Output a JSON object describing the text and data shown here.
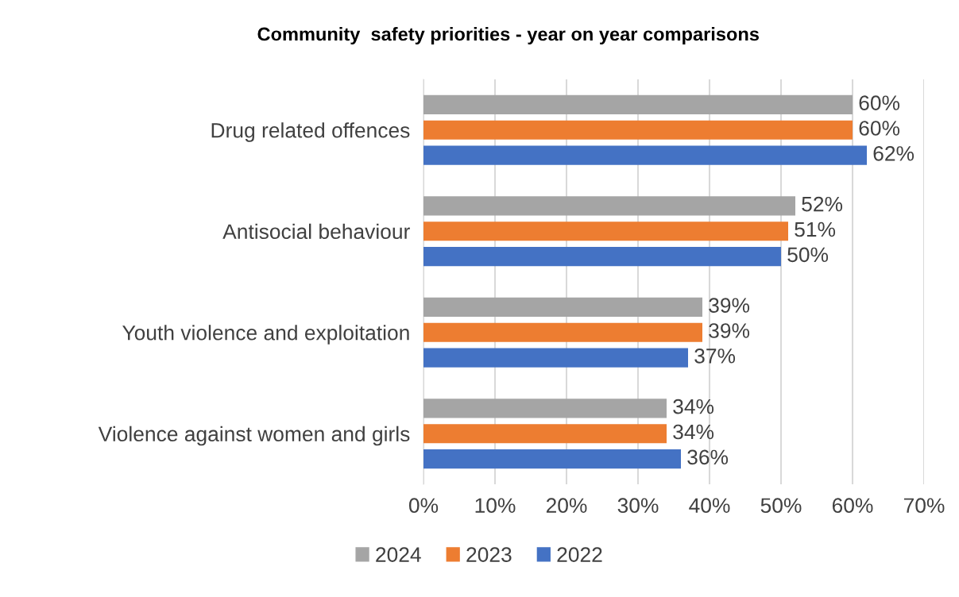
{
  "chart_data": {
    "type": "bar",
    "orientation": "horizontal",
    "title": "Community  safety priorities - year on year comparisons",
    "categories": [
      "Drug related offences",
      "Antisocial behaviour",
      "Youth violence and exploitation",
      "Violence against women and girls"
    ],
    "series": [
      {
        "name": "2024",
        "color": "#a5a5a5",
        "values": [
          60,
          52,
          39,
          34
        ],
        "value_labels": [
          "60%",
          "52%",
          "39%",
          "34%"
        ]
      },
      {
        "name": "2023",
        "color": "#ed7d31",
        "values": [
          60,
          51,
          39,
          34
        ],
        "value_labels": [
          "60%",
          "51%",
          "39%",
          "34%"
        ]
      },
      {
        "name": "2022",
        "color": "#4472c4",
        "values": [
          62,
          50,
          37,
          36
        ],
        "value_labels": [
          "62%",
          "50%",
          "37%",
          "36%"
        ]
      }
    ],
    "xlim": [
      0,
      70
    ],
    "xticks": [
      {
        "value": 0,
        "label": "0%"
      },
      {
        "value": 10,
        "label": "10%"
      },
      {
        "value": 20,
        "label": "20%"
      },
      {
        "value": 30,
        "label": "30%"
      },
      {
        "value": 40,
        "label": "40%"
      },
      {
        "value": 50,
        "label": "50%"
      },
      {
        "value": 60,
        "label": "60%"
      },
      {
        "value": 70,
        "label": "70%"
      }
    ],
    "grid": "x",
    "legend": "bottom"
  }
}
